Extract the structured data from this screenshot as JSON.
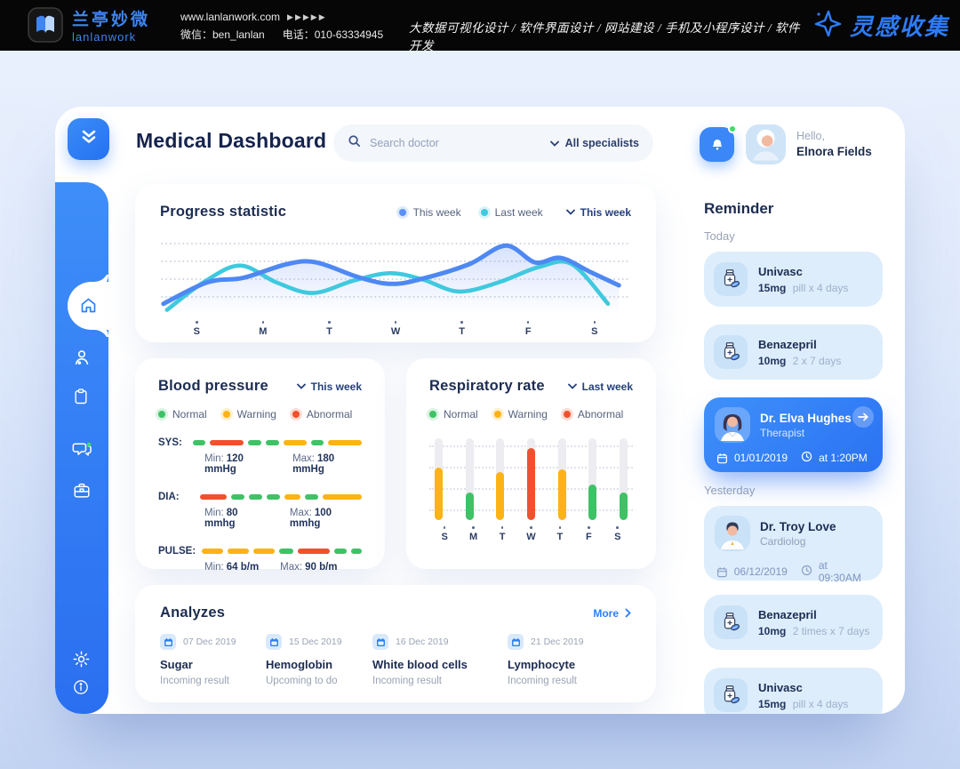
{
  "top_bar": {
    "brand_cn": "兰亭妙微",
    "brand_en": "lanlanwork",
    "website": "www.lanlanwork.com",
    "website_arrows": "▶▶▶▶▶",
    "wechat": "微信：ben_lanlan",
    "phone": "电话：010-63334945",
    "services": "大数据可视化设计 / 软件界面设计 / 网站建设 / 手机及小程序设计 / 软件开发",
    "collect_label": "灵感收集"
  },
  "header": {
    "title": "Medical Dashboard",
    "search_placeholder": "Search doctor",
    "specialists_filter": "All specialists",
    "greeting": "Hello,",
    "user_name": "Elnora Fields"
  },
  "colors": {
    "accent_blue": "#2d7ff8",
    "normal_green": "#3fc266",
    "warning_yellow": "#fcb315",
    "abnormal_red": "#f0512c",
    "line_blue": "#4e88f3",
    "line_cyan": "#3fc9de",
    "sidebar_blue": "#2f7df6",
    "card_light_blue": "#ddedfc"
  },
  "progress": {
    "title": "Progress statistic",
    "range_label": "This week",
    "legend": [
      {
        "label": "This week",
        "color": "#5b8ff7"
      },
      {
        "label": "Last week",
        "color": "#3fc9de"
      }
    ],
    "days": [
      "S",
      "M",
      "T",
      "W",
      "T",
      "F",
      "S"
    ],
    "chart_data": {
      "type": "line",
      "x_unit": "day-index 0..6 (S..S)",
      "y_unit": "relative level 0-100",
      "series": [
        {
          "name": "This week",
          "color": "#4e88f3",
          "points": [
            [
              -0.1,
              12
            ],
            [
              0.5,
              40
            ],
            [
              1.0,
              46
            ],
            [
              1.6,
              64
            ],
            [
              2.0,
              66
            ],
            [
              2.6,
              46
            ],
            [
              3.05,
              38
            ],
            [
              3.5,
              46
            ],
            [
              4.1,
              64
            ],
            [
              4.6,
              88
            ],
            [
              5.0,
              66
            ],
            [
              5.35,
              72
            ],
            [
              5.75,
              54
            ],
            [
              6.15,
              36
            ]
          ]
        },
        {
          "name": "Last week",
          "color": "#3fc9de",
          "points": [
            [
              -0.05,
              4
            ],
            [
              0.45,
              40
            ],
            [
              0.95,
              62
            ],
            [
              1.45,
              40
            ],
            [
              1.95,
              26
            ],
            [
              2.5,
              42
            ],
            [
              3.0,
              52
            ],
            [
              3.45,
              44
            ],
            [
              3.95,
              28
            ],
            [
              4.5,
              40
            ],
            [
              5.05,
              60
            ],
            [
              5.5,
              64
            ],
            [
              6.0,
              12
            ]
          ]
        }
      ],
      "gridlines": 4,
      "grid_style": "dotted",
      "legend_position": "top-right"
    }
  },
  "blood_pressure": {
    "title": "Blood pressure",
    "range_label": "This week",
    "legend": [
      {
        "label": "Normal",
        "color": "#3fc266"
      },
      {
        "label": "Warning",
        "color": "#fcb315"
      },
      {
        "label": "Abnormal",
        "color": "#f0512c"
      }
    ],
    "rows": [
      {
        "label": "SYS:",
        "min_label": "Min:",
        "min_value": "120 mmHg",
        "max_label": "Max:",
        "max_value": "180 mmHg",
        "segments": [
          [
            "g",
            14
          ],
          [
            "r",
            38
          ],
          [
            "g",
            15
          ],
          [
            "g",
            15
          ],
          [
            "y",
            26
          ],
          [
            "g",
            14
          ],
          [
            "y",
            38
          ]
        ]
      },
      {
        "label": "DIA:",
        "min_label": "Min:",
        "min_value": "80 mmhg",
        "max_label": "Max:",
        "max_value": "100 mmhg",
        "segments": [
          [
            "r",
            30
          ],
          [
            "g",
            15
          ],
          [
            "g",
            15
          ],
          [
            "g",
            15
          ],
          [
            "y",
            18
          ],
          [
            "g",
            15
          ],
          [
            "y",
            44
          ]
        ]
      },
      {
        "label": "PULSE:",
        "min_label": "Min:",
        "min_value": "64 b/m",
        "max_label": "Max:",
        "max_value": "90 b/m",
        "segments": [
          [
            "y",
            24
          ],
          [
            "y",
            24
          ],
          [
            "y",
            24
          ],
          [
            "g",
            16
          ],
          [
            "r",
            36
          ],
          [
            "g",
            14
          ],
          [
            "g",
            12
          ]
        ]
      }
    ]
  },
  "respiratory": {
    "title": "Respiratory rate",
    "range_label": "Last week",
    "legend": [
      {
        "label": "Normal",
        "color": "#3fc266"
      },
      {
        "label": "Warning",
        "color": "#fcb315"
      },
      {
        "label": "Abnormal",
        "color": "#f0512c"
      }
    ],
    "days": [
      "S",
      "M",
      "T",
      "W",
      "T",
      "F",
      "S"
    ],
    "chart_data": {
      "type": "bar",
      "categories": [
        "S",
        "M",
        "T",
        "W",
        "T",
        "F",
        "S"
      ],
      "values": [
        64,
        34,
        59,
        88,
        62,
        43,
        34
      ],
      "statuses": [
        "warning",
        "normal",
        "warning",
        "abnormal",
        "warning",
        "normal",
        "normal"
      ],
      "y_unit": "% of track height",
      "grid_style": "dotted"
    }
  },
  "analyzes": {
    "title": "Analyzes",
    "more_label": "More",
    "items": [
      {
        "date": "07 Dec 2019",
        "name": "Sugar",
        "status": "Incoming result"
      },
      {
        "date": "15 Dec 2019",
        "name": "Hemoglobin",
        "status": "Upcoming to do"
      },
      {
        "date": "16 Dec 2019",
        "name": "White blood cells",
        "status": "Incoming result"
      },
      {
        "date": "21 Dec 2019",
        "name": "Lymphocyte",
        "status": "Incoming result"
      }
    ]
  },
  "reminder": {
    "title": "Reminder",
    "sections": [
      {
        "label": "Today",
        "items": [
          {
            "type": "med",
            "icon": "pill-bottle-icon",
            "name": "Univasc",
            "dose": "15mg",
            "schedule": "pill x 4 days"
          },
          {
            "type": "med",
            "icon": "pill-bottle-icon",
            "name": "Benazepril",
            "dose": "10mg",
            "schedule": "2 x 7 days"
          },
          {
            "type": "doctor",
            "highlight": true,
            "avatar": "female-doctor-avatar",
            "name": "Dr. Elva Hughes",
            "specialty": "Therapist",
            "date": "01/01/2019",
            "time": "at 1:20PM"
          }
        ]
      },
      {
        "label": "Yesterday",
        "items": [
          {
            "type": "doctor",
            "highlight": false,
            "avatar": "male-doctor-avatar",
            "name": "Dr. Troy Love",
            "specialty": "Cardiolog",
            "date": "06/12/2019",
            "time": "at 09:30AM"
          },
          {
            "type": "med",
            "icon": "pill-bottle-icon",
            "name": "Benazepril",
            "dose": "10mg",
            "schedule": "2 times  x 7 days"
          },
          {
            "type": "med",
            "icon": "pill-bottle-icon",
            "name": "Univasc",
            "dose": "15mg",
            "schedule": "pill x 4 days"
          }
        ]
      }
    ]
  }
}
